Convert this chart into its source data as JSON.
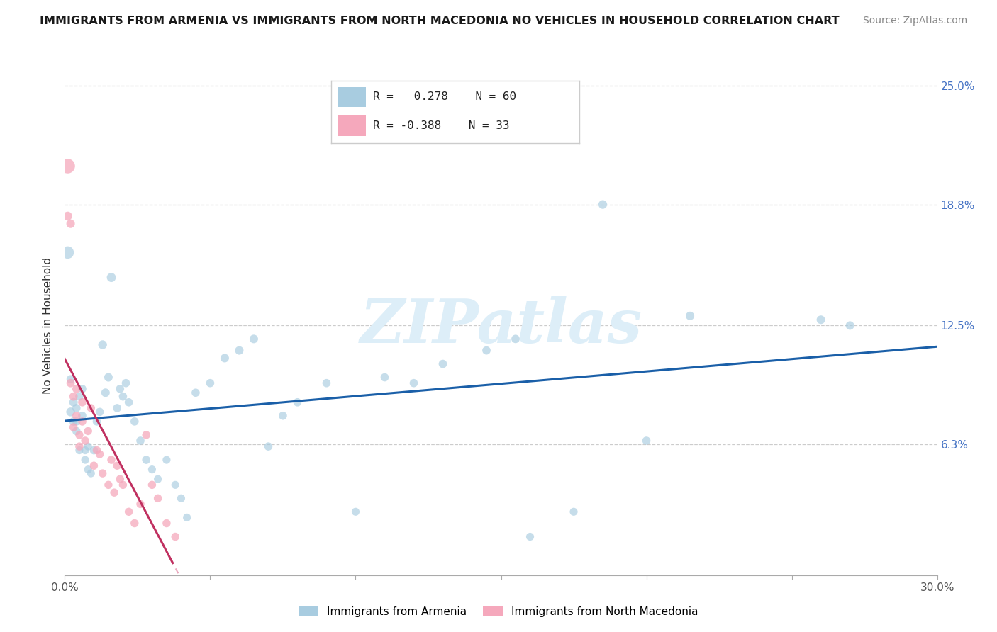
{
  "title": "IMMIGRANTS FROM ARMENIA VS IMMIGRANTS FROM NORTH MACEDONIA NO VEHICLES IN HOUSEHOLD CORRELATION CHART",
  "source": "Source: ZipAtlas.com",
  "ylabel_label": "No Vehicles in Household",
  "legend_label_blue": "Immigrants from Armenia",
  "legend_label_pink": "Immigrants from North Macedonia",
  "r_blue": 0.278,
  "n_blue": 60,
  "r_pink": -0.388,
  "n_pink": 33,
  "xlim": [
    0.0,
    0.3
  ],
  "ylim": [
    -0.005,
    0.255
  ],
  "ytick_values": [
    0.063,
    0.125,
    0.188,
    0.25
  ],
  "ytick_labels": [
    "6.3%",
    "12.5%",
    "18.8%",
    "25.0%"
  ],
  "grid_color": "#cccccc",
  "background_color": "#ffffff",
  "blue_color": "#a8cce0",
  "pink_color": "#f5a8bc",
  "blue_line_color": "#1a5fa8",
  "pink_line_color": "#c03060",
  "pink_dash_color": "#e8a0b8",
  "watermark_text": "ZIPatlas",
  "blue_x": [
    0.001,
    0.002,
    0.002,
    0.003,
    0.003,
    0.004,
    0.004,
    0.004,
    0.005,
    0.005,
    0.006,
    0.006,
    0.007,
    0.007,
    0.008,
    0.008,
    0.009,
    0.01,
    0.011,
    0.012,
    0.013,
    0.014,
    0.015,
    0.016,
    0.018,
    0.019,
    0.02,
    0.021,
    0.022,
    0.024,
    0.026,
    0.028,
    0.03,
    0.032,
    0.035,
    0.038,
    0.04,
    0.042,
    0.045,
    0.05,
    0.055,
    0.06,
    0.065,
    0.07,
    0.075,
    0.08,
    0.09,
    0.1,
    0.11,
    0.12,
    0.13,
    0.145,
    0.155,
    0.16,
    0.175,
    0.185,
    0.2,
    0.215,
    0.26,
    0.27
  ],
  "blue_y": [
    0.163,
    0.08,
    0.097,
    0.075,
    0.085,
    0.07,
    0.075,
    0.082,
    0.088,
    0.06,
    0.078,
    0.092,
    0.06,
    0.055,
    0.05,
    0.062,
    0.048,
    0.06,
    0.075,
    0.08,
    0.115,
    0.09,
    0.098,
    0.15,
    0.082,
    0.092,
    0.088,
    0.095,
    0.085,
    0.075,
    0.065,
    0.055,
    0.05,
    0.045,
    0.055,
    0.042,
    0.035,
    0.025,
    0.09,
    0.095,
    0.108,
    0.112,
    0.118,
    0.062,
    0.078,
    0.085,
    0.095,
    0.028,
    0.098,
    0.095,
    0.105,
    0.112,
    0.118,
    0.015,
    0.028,
    0.188,
    0.065,
    0.13,
    0.128,
    0.125
  ],
  "blue_sizes": [
    160,
    80,
    70,
    75,
    75,
    70,
    70,
    70,
    70,
    65,
    70,
    70,
    65,
    65,
    65,
    65,
    65,
    70,
    70,
    70,
    80,
    75,
    75,
    85,
    70,
    70,
    70,
    70,
    70,
    70,
    70,
    70,
    65,
    65,
    65,
    65,
    65,
    65,
    70,
    70,
    75,
    75,
    75,
    70,
    70,
    70,
    70,
    65,
    70,
    70,
    72,
    72,
    72,
    65,
    65,
    78,
    70,
    75,
    75,
    75
  ],
  "pink_x": [
    0.001,
    0.001,
    0.002,
    0.002,
    0.003,
    0.003,
    0.004,
    0.004,
    0.005,
    0.005,
    0.006,
    0.006,
    0.007,
    0.008,
    0.009,
    0.01,
    0.011,
    0.012,
    0.013,
    0.015,
    0.016,
    0.017,
    0.018,
    0.019,
    0.02,
    0.022,
    0.024,
    0.026,
    0.028,
    0.03,
    0.032,
    0.035,
    0.038
  ],
  "pink_y": [
    0.208,
    0.182,
    0.178,
    0.095,
    0.088,
    0.072,
    0.092,
    0.078,
    0.068,
    0.062,
    0.075,
    0.085,
    0.065,
    0.07,
    0.082,
    0.052,
    0.06,
    0.058,
    0.048,
    0.042,
    0.055,
    0.038,
    0.052,
    0.045,
    0.042,
    0.028,
    0.022,
    0.032,
    0.068,
    0.042,
    0.035,
    0.022,
    0.015
  ],
  "pink_sizes": [
    220,
    80,
    75,
    72,
    72,
    70,
    70,
    70,
    68,
    68,
    70,
    70,
    68,
    68,
    68,
    68,
    68,
    68,
    68,
    68,
    68,
    68,
    68,
    68,
    68,
    68,
    68,
    68,
    68,
    68,
    68,
    68,
    68
  ]
}
